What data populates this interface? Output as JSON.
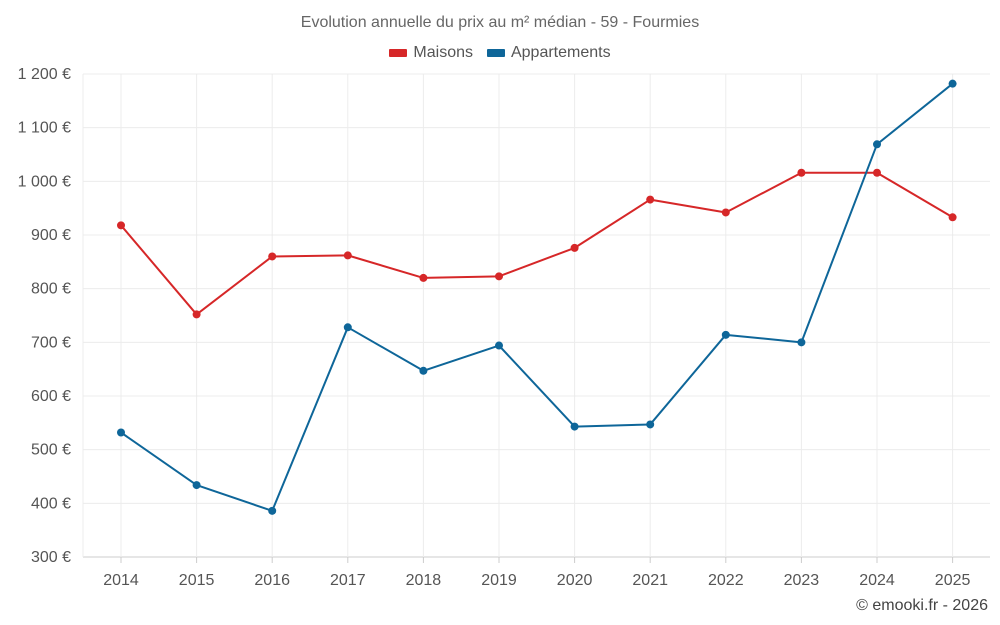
{
  "chart_data": {
    "type": "line",
    "title": "Evolution annuelle du prix au m² médian - 59 - Fourmies",
    "categories": [
      "2014",
      "2015",
      "2016",
      "2017",
      "2018",
      "2019",
      "2020",
      "2021",
      "2022",
      "2023",
      "2024",
      "2025"
    ],
    "series": [
      {
        "name": "Maisons",
        "color": "#d62728",
        "values": [
          918,
          752,
          860,
          862,
          820,
          823,
          876,
          966,
          942,
          1016,
          1016,
          933
        ]
      },
      {
        "name": "Appartements",
        "color": "#0e6699",
        "values": [
          532,
          434,
          386,
          728,
          647,
          694,
          543,
          547,
          714,
          700,
          1069,
          1182
        ]
      }
    ],
    "yticks": [
      300,
      400,
      500,
      600,
      700,
      800,
      900,
      1000,
      1100,
      1200
    ],
    "ytick_labels": [
      "300 €",
      "400 €",
      "500 €",
      "600 €",
      "700 €",
      "800 €",
      "900 €",
      "1 000 €",
      "1 100 €",
      "1 200 €"
    ],
    "ylim": [
      300,
      1200
    ],
    "grid": true,
    "legend_position": "top-center",
    "xlabel": "",
    "ylabel": ""
  },
  "copyright": "© emooki.fr - 2026"
}
